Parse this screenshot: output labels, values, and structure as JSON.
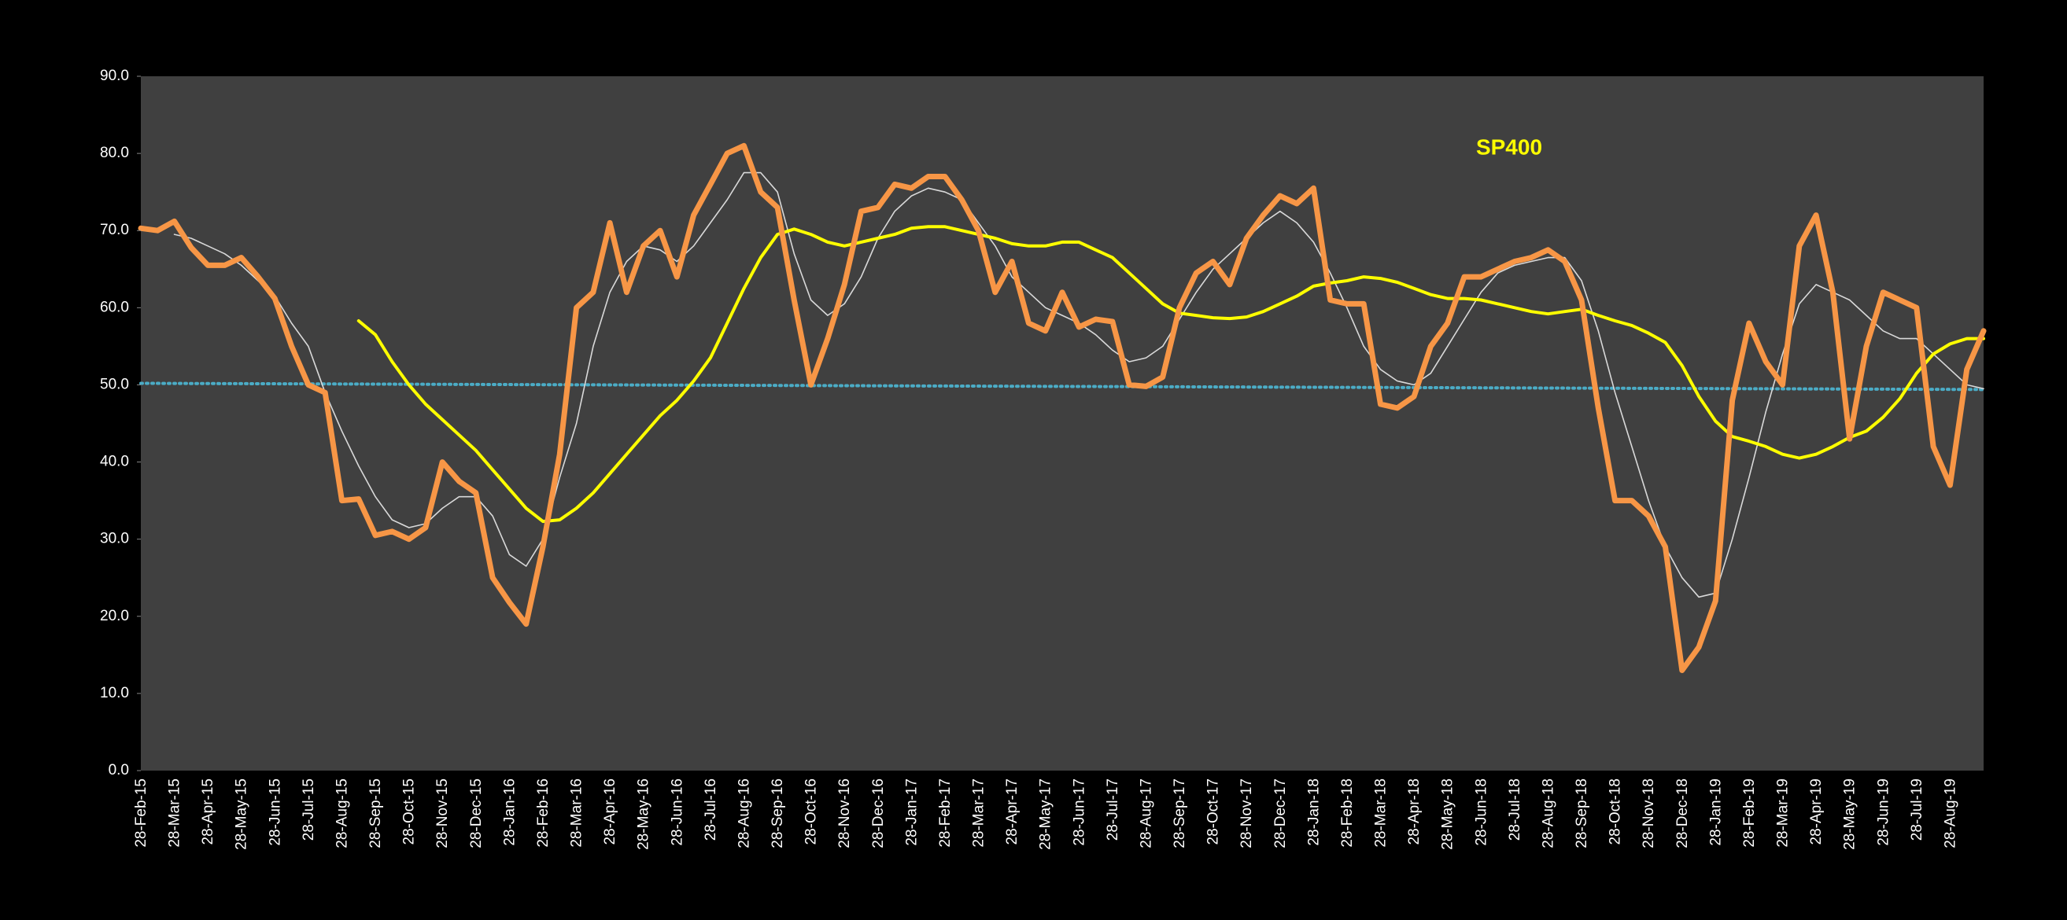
{
  "chart_data": {
    "type": "line",
    "title": "SP400",
    "title_color": "#ffff00",
    "categories": [
      "28-Feb-15",
      null,
      "28-Mar-15",
      null,
      "28-Apr-15",
      null,
      "28-May-15",
      null,
      "28-Jun-15",
      null,
      "28-Jul-15",
      null,
      "28-Aug-15",
      null,
      "28-Sep-15",
      null,
      "28-Oct-15",
      null,
      "28-Nov-15",
      null,
      "28-Dec-15",
      null,
      "28-Jan-16",
      null,
      "28-Feb-16",
      null,
      "28-Mar-16",
      null,
      "28-Apr-16",
      null,
      "28-May-16",
      null,
      "28-Jun-16",
      null,
      "28-Jul-16",
      null,
      "28-Aug-16",
      null,
      "28-Sep-16",
      null,
      "28-Oct-16",
      null,
      "28-Nov-16",
      null,
      "28-Dec-16",
      null,
      "28-Jan-17",
      null,
      "28-Feb-17",
      null,
      "28-Mar-17",
      null,
      "28-Apr-17",
      null,
      "28-May-17",
      null,
      "28-Jun-17",
      null,
      "28-Jul-17",
      null,
      "28-Aug-17",
      null,
      "28-Sep-17",
      null,
      "28-Oct-17",
      null,
      "28-Nov-17",
      null,
      "28-Dec-17",
      null,
      "28-Jan-18",
      null,
      "28-Feb-18",
      null,
      "28-Mar-18",
      null,
      "28-Apr-18",
      null,
      "28-May-18",
      null,
      "28-Jun-18",
      null,
      "28-Jul-18",
      null,
      "28-Aug-18",
      null,
      "28-Sep-18",
      null,
      "28-Oct-18",
      null,
      "28-Nov-18",
      null,
      "28-Dec-18",
      null,
      "28-Jan-19",
      null,
      "28-Feb-19",
      null,
      "28-Mar-19",
      null,
      "28-Apr-19",
      null,
      "28-May-19",
      null,
      "28-Jun-19",
      null,
      "28-Jul-19",
      null,
      "28-Aug-19",
      null,
      null
    ],
    "series": [
      {
        "color": "#f79646",
        "width": 7,
        "values": [
          70.3,
          70.0,
          71.2,
          67.8,
          65.5,
          65.5,
          66.5,
          64,
          61.2,
          55,
          50,
          49,
          35,
          35.2,
          30.5,
          31,
          30,
          31.5,
          40,
          37.5,
          36,
          25,
          21.8,
          19,
          29,
          41,
          60,
          62,
          71,
          62,
          68,
          70,
          64,
          72,
          76,
          80,
          81,
          75,
          73,
          61,
          50,
          56,
          63,
          72.5,
          73,
          76,
          75.5,
          77,
          77,
          74,
          70,
          62,
          66,
          58,
          57,
          62,
          57.5,
          58.5,
          58.2,
          50,
          49.8,
          51,
          60,
          64.5,
          66,
          63,
          69,
          72,
          74.5,
          73.5,
          75.5,
          61,
          60.5,
          60.5,
          47.5,
          47,
          48.5,
          55,
          58,
          64,
          64,
          65,
          66,
          66.5,
          67.5,
          66,
          61,
          47,
          35,
          35,
          33,
          29,
          13,
          16,
          22,
          48,
          58,
          53,
          50,
          68,
          72,
          62,
          43,
          55,
          62,
          61,
          60,
          42,
          37,
          52,
          57
        ]
      },
      {
        "color": "#d9d9d9",
        "width": 1.6,
        "values": [
          null,
          null,
          69.5,
          69,
          68,
          67,
          65.5,
          63.5,
          61.5,
          58,
          55,
          49,
          44,
          39.5,
          35.5,
          32.5,
          31.5,
          32,
          34,
          35.5,
          35.5,
          33,
          28,
          26.5,
          30,
          38,
          45,
          55,
          62,
          66,
          68,
          67.5,
          66,
          68,
          71,
          74,
          77.5,
          77.5,
          75,
          67,
          61,
          59,
          60.5,
          64,
          69,
          72.5,
          74.5,
          75.5,
          75,
          74,
          71,
          68,
          64,
          62,
          60,
          59,
          58,
          56.5,
          54.5,
          53,
          53.5,
          55,
          58.5,
          62,
          65,
          67,
          69,
          71,
          72.5,
          71,
          68.5,
          64.5,
          60,
          55,
          52,
          50.5,
          50,
          51.5,
          55,
          58.5,
          62,
          64.5,
          65.5,
          66,
          66.5,
          66.5,
          63.5,
          57,
          49,
          42,
          35,
          29,
          25,
          22.5,
          23,
          30,
          38,
          46.5,
          54,
          60.5,
          63,
          62,
          61,
          59,
          57,
          56,
          56,
          54,
          52,
          50,
          49.5
        ]
      },
      {
        "color": "#ffff00",
        "width": 4,
        "values": [
          null,
          null,
          null,
          null,
          null,
          null,
          null,
          null,
          null,
          null,
          null,
          null,
          null,
          58.3,
          56.5,
          53,
          50,
          47.5,
          45.5,
          43.5,
          41.5,
          39,
          36.5,
          34,
          32.3,
          32.5,
          34,
          36,
          38.5,
          41,
          43.5,
          46,
          48,
          50.5,
          53.5,
          58,
          62.5,
          66.5,
          69.5,
          70.2,
          69.5,
          68.5,
          68,
          68.5,
          69,
          69.5,
          70.3,
          70.5,
          70.5,
          70,
          69.5,
          69,
          68.3,
          68,
          68,
          68.5,
          68.5,
          67.5,
          66.5,
          64.5,
          62.5,
          60.5,
          59.3,
          59,
          58.7,
          58.6,
          58.8,
          59.5,
          60.5,
          61.5,
          62.8,
          63.2,
          63.5,
          64,
          63.8,
          63.3,
          62.5,
          61.7,
          61.2,
          61.2,
          61,
          60.5,
          60,
          59.5,
          59.2,
          59.5,
          59.8,
          59,
          58.3,
          57.7,
          56.7,
          55.5,
          52.5,
          48.5,
          45.3,
          43.3,
          42.7,
          42,
          41,
          40.5,
          41,
          42,
          43.2,
          44,
          45.8,
          48.2,
          51.5,
          54,
          55.3,
          56,
          56
        ]
      }
    ],
    "trend": {
      "color": "#4bacc6",
      "values": [
        50.2,
        49.4
      ]
    },
    "ylim": [
      0,
      90
    ],
    "yticks": [
      {
        "value": 0,
        "label": "0.0"
      },
      {
        "value": 10,
        "label": "10.0"
      },
      {
        "value": 20,
        "label": "20.0"
      },
      {
        "value": 30,
        "label": "30.0"
      },
      {
        "value": 40,
        "label": "40.0"
      },
      {
        "value": 50,
        "label": "50.0"
      },
      {
        "value": 60,
        "label": "60.0"
      },
      {
        "value": 70,
        "label": "70.0"
      },
      {
        "value": 80,
        "label": "80.0"
      },
      {
        "value": 90,
        "label": "90.0"
      }
    ],
    "grid": false,
    "plot_background": "#404040"
  }
}
